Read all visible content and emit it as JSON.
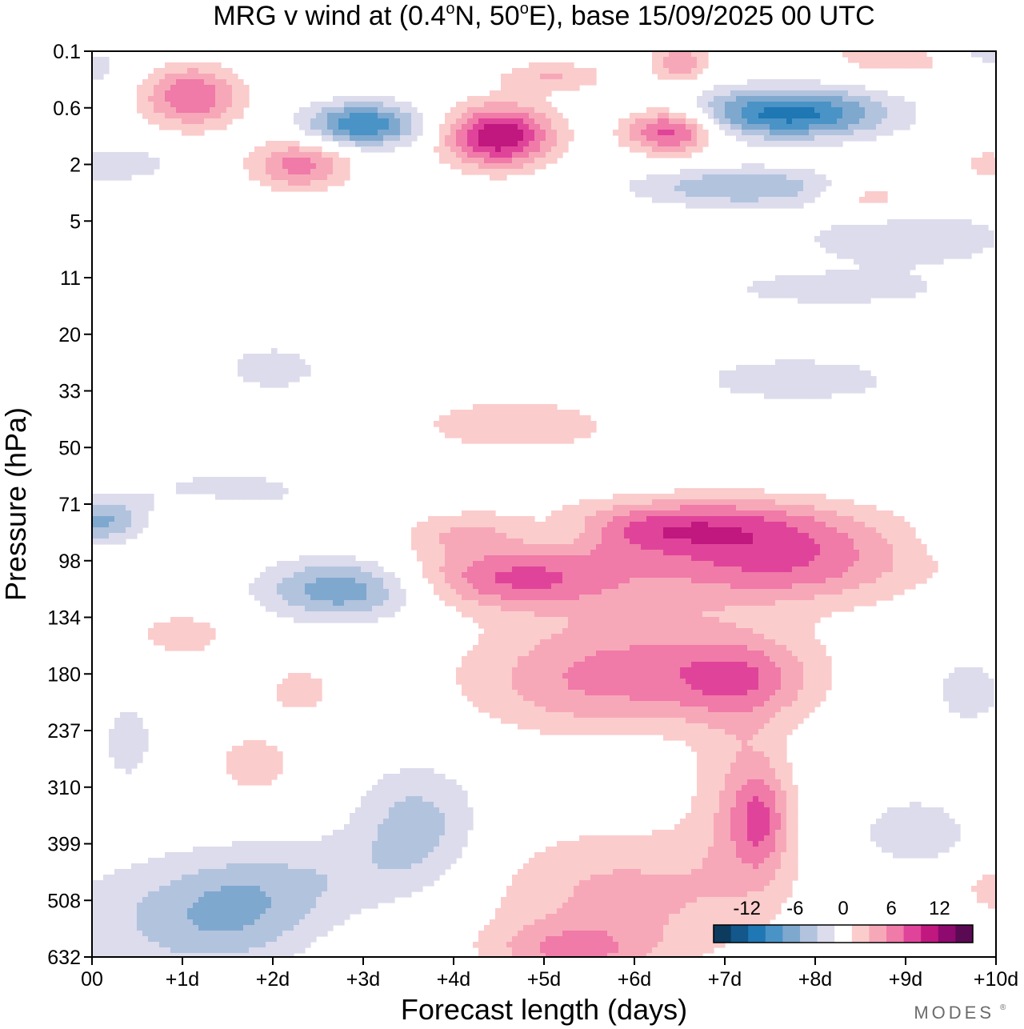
{
  "chart_data": {
    "type": "heatmap",
    "subtype": "filled-contour",
    "title_main": "MRG v wind at (0.4",
    "title_deg1": "o",
    "title_mid": "N, 50",
    "title_deg2": "o",
    "title_end": "E),  base 15/09/2025  00 UTC",
    "xlabel": "Forecast length (days)",
    "ylabel": "Pressure (hPa)",
    "x_ticks": [
      "00",
      "+1d",
      "+2d",
      "+3d",
      "+4d",
      "+5d",
      "+6d",
      "+7d",
      "+8d",
      "+9d",
      "+10d"
    ],
    "xlim": [
      0,
      10
    ],
    "y_ticks": [
      "0.1",
      "0.6",
      "2",
      "5",
      "11",
      "20",
      "33",
      "50",
      "71",
      "98",
      "134",
      "180",
      "237",
      "310",
      "399",
      "508",
      "632"
    ],
    "colorbar": {
      "tick_labels": [
        "-12",
        "-6",
        "0",
        "6",
        "12"
      ],
      "levels": [
        -14,
        -12,
        -10,
        -8,
        -6,
        -4,
        -2,
        2,
        4,
        6,
        8,
        10,
        12,
        14
      ],
      "colors": [
        "#0c3b5e",
        "#14578a",
        "#1f77b4",
        "#4a93c6",
        "#7fa8cf",
        "#b2c3de",
        "#dcdcec",
        "#ffffff",
        "#fbcccc",
        "#f7a8b8",
        "#f07aa8",
        "#e0449a",
        "#c0187f",
        "#8e0a6f",
        "#5a0a52"
      ]
    },
    "features": [
      {
        "day": 1.1,
        "level_index": 0.8,
        "sx": 0.55,
        "sy": 0.55,
        "v": 8
      },
      {
        "day": 2.3,
        "level_index": 2.0,
        "sx": 0.55,
        "sy": 0.45,
        "v": 7
      },
      {
        "day": 4.5,
        "level_index": 1.5,
        "sx": 0.6,
        "sy": 0.55,
        "v": 12
      },
      {
        "day": 6.4,
        "level_index": 1.4,
        "sx": 0.5,
        "sy": 0.4,
        "v": 10
      },
      {
        "day": 6.5,
        "level_index": 0.2,
        "sx": 0.3,
        "sy": 0.35,
        "v": 6
      },
      {
        "day": 5.1,
        "level_index": 0.45,
        "sx": 0.6,
        "sy": 0.28,
        "v": 4
      },
      {
        "day": 9.1,
        "level_index": 0.1,
        "sx": 0.8,
        "sy": 0.3,
        "v": 6
      },
      {
        "day": 9.9,
        "level_index": 2.0,
        "sx": 0.25,
        "sy": 0.3,
        "v": 3
      },
      {
        "day": 8.6,
        "level_index": 2.6,
        "sx": 0.5,
        "sy": 0.35,
        "v": 4
      },
      {
        "day": 3.0,
        "level_index": 1.3,
        "sx": 0.65,
        "sy": 0.4,
        "v": -10
      },
      {
        "day": 7.7,
        "level_index": 1.1,
        "sx": 1.1,
        "sy": 0.45,
        "v": -11
      },
      {
        "day": 7.2,
        "level_index": 2.4,
        "sx": 1.2,
        "sy": 0.35,
        "v": -6
      },
      {
        "day": 9.7,
        "level_index": 0.05,
        "sx": 0.8,
        "sy": 0.3,
        "v": -5
      },
      {
        "day": 0.0,
        "level_index": 0.3,
        "sx": 0.4,
        "sy": 0.4,
        "v": -3
      },
      {
        "day": 0.2,
        "level_index": 2.0,
        "sx": 0.7,
        "sy": 0.3,
        "v": -4
      },
      {
        "day": 9.0,
        "level_index": 3.3,
        "sx": 1.2,
        "sy": 0.5,
        "v": -4
      },
      {
        "day": 8.2,
        "level_index": 4.2,
        "sx": 1.5,
        "sy": 0.35,
        "v": -3
      },
      {
        "day": 7.8,
        "level_index": 5.8,
        "sx": 1.4,
        "sy": 0.5,
        "v": -3
      },
      {
        "day": 2.0,
        "level_index": 5.6,
        "sx": 0.8,
        "sy": 0.6,
        "v": -2.6
      },
      {
        "day": 4.7,
        "level_index": 6.6,
        "sx": 1.2,
        "sy": 0.5,
        "v": 3.5
      },
      {
        "day": 6.0,
        "level_index": 8.5,
        "sx": 1.1,
        "sy": 0.45,
        "v": 4
      },
      {
        "day": 4.1,
        "level_index": 8.5,
        "sx": 0.7,
        "sy": 0.4,
        "v": 3.5
      },
      {
        "day": 4.7,
        "level_index": 9.3,
        "sx": 1.3,
        "sy": 0.55,
        "v": 8
      },
      {
        "day": 7.6,
        "level_index": 9.0,
        "sx": 1.5,
        "sy": 0.75,
        "v": 8
      },
      {
        "day": 6.9,
        "level_index": 8.3,
        "sx": 1.5,
        "sy": 0.5,
        "v": 5
      },
      {
        "day": 6.0,
        "level_index": 10.7,
        "sx": 1.7,
        "sy": 1.0,
        "v": 5
      },
      {
        "day": 7.2,
        "level_index": 11.1,
        "sx": 0.8,
        "sy": 0.7,
        "v": 5
      },
      {
        "day": 5.5,
        "level_index": 11.4,
        "sx": 1.4,
        "sy": 0.8,
        "v": 3
      },
      {
        "day": 7.2,
        "level_index": 13.2,
        "sx": 0.55,
        "sy": 1.6,
        "v": 4
      },
      {
        "day": 7.4,
        "level_index": 13.6,
        "sx": 0.3,
        "sy": 0.9,
        "v": 5
      },
      {
        "day": 5.9,
        "level_index": 14.9,
        "sx": 1.6,
        "sy": 1.2,
        "v": 4.5
      },
      {
        "day": 5.3,
        "level_index": 15.9,
        "sx": 0.9,
        "sy": 0.5,
        "v": 5
      },
      {
        "day": 1.0,
        "level_index": 10.3,
        "sx": 0.6,
        "sy": 0.45,
        "v": 3
      },
      {
        "day": 2.3,
        "level_index": 11.3,
        "sx": 0.4,
        "sy": 0.45,
        "v": 3
      },
      {
        "day": 1.8,
        "level_index": 12.6,
        "sx": 0.5,
        "sy": 0.65,
        "v": 3
      },
      {
        "day": 1.2,
        "level_index": 8.3,
        "sx": 0.55,
        "sy": 0.35,
        "v": 2.8
      },
      {
        "day": 10.0,
        "level_index": 14.8,
        "sx": 0.4,
        "sy": 0.5,
        "v": 3
      },
      {
        "day": 2.8,
        "level_index": 9.5,
        "sx": 0.9,
        "sy": 0.55,
        "v": -8
      },
      {
        "day": 0.1,
        "level_index": 8.3,
        "sx": 0.5,
        "sy": 0.4,
        "v": -6
      },
      {
        "day": 1.5,
        "level_index": 7.8,
        "sx": 1.3,
        "sy": 0.6,
        "v": -2.6
      },
      {
        "day": 3.6,
        "level_index": 13.7,
        "sx": 0.7,
        "sy": 1.1,
        "v": -5
      },
      {
        "day": 1.6,
        "level_index": 15.2,
        "sx": 0.9,
        "sy": 1.0,
        "v": -5
      },
      {
        "day": 0.5,
        "level_index": 15.4,
        "sx": 1.2,
        "sy": 1.2,
        "v": -3
      },
      {
        "day": 2.6,
        "level_index": 14.6,
        "sx": 1.0,
        "sy": 0.8,
        "v": -2.6
      },
      {
        "day": 9.1,
        "level_index": 13.8,
        "sx": 0.6,
        "sy": 0.6,
        "v": -4
      },
      {
        "day": 9.7,
        "level_index": 11.3,
        "sx": 0.6,
        "sy": 0.9,
        "v": -2.6
      },
      {
        "day": 0.4,
        "level_index": 12.2,
        "sx": 0.4,
        "sy": 1.0,
        "v": -2.6
      },
      {
        "day": 9.8,
        "level_index": 8.6,
        "sx": 0.5,
        "sy": 0.3,
        "v": -2.6
      },
      {
        "day": 5.2,
        "level_index": 8.5,
        "sx": 0.5,
        "sy": 0.3,
        "v": -2.6
      }
    ]
  },
  "logo": "MODES"
}
